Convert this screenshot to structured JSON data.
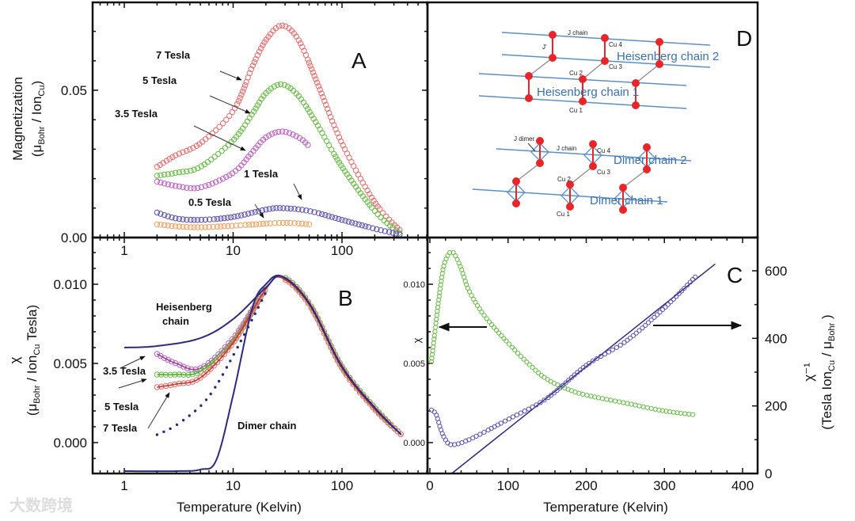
{
  "colors": {
    "t7": "#e76b6b",
    "t5": "#66bb44",
    "t35": "#bb5fc0",
    "t1": "#5a4fb0",
    "t05": "#f0a060",
    "model": "#2b2a80",
    "chainline": "#5b8fc9",
    "node": "#e8262a"
  },
  "watermark": "大数跨境",
  "chart_data": [
    {
      "panel": "A",
      "type": "scatter",
      "letter": "A",
      "xscale": "log",
      "xlim": [
        0.5,
        600
      ],
      "ylim": [
        0,
        0.08
      ],
      "xticks": [
        "1",
        "10",
        "100"
      ],
      "yticks": [
        "0.00",
        "0.05"
      ],
      "ylabel_line1": "Magnetization",
      "ylabel_line2": [
        "(μ",
        "Bohr",
        " / Ion",
        "Cu",
        ")"
      ],
      "annotations": [
        "7 Tesla",
        "5 Tesla",
        "3.5 Tesla",
        "1 Tesla",
        "0.5 Tesla"
      ],
      "series": [
        {
          "name": "7 Tesla",
          "color": "t7",
          "x": [
            2,
            3,
            5,
            10,
            15,
            20,
            28,
            40,
            60,
            100,
            200,
            350
          ],
          "y": [
            0.024,
            0.028,
            0.032,
            0.043,
            0.058,
            0.067,
            0.072,
            0.067,
            0.052,
            0.032,
            0.012,
            0.002
          ]
        },
        {
          "name": "5 Tesla",
          "color": "t5",
          "x": [
            2,
            3,
            5,
            10,
            15,
            20,
            28,
            40,
            60,
            100,
            200,
            350
          ],
          "y": [
            0.021,
            0.022,
            0.024,
            0.033,
            0.042,
            0.049,
            0.052,
            0.048,
            0.038,
            0.024,
            0.009,
            0.001
          ]
        },
        {
          "name": "3.5 Tesla",
          "color": "t35",
          "x": [
            2,
            3,
            5,
            10,
            15,
            20,
            28,
            40,
            50
          ],
          "y": [
            0.019,
            0.0175,
            0.017,
            0.022,
            0.029,
            0.034,
            0.036,
            0.034,
            0.031
          ]
        },
        {
          "name": "1 Tesla",
          "color": "t1",
          "x": [
            2,
            3,
            5,
            10,
            20,
            28,
            50,
            100,
            200,
            350
          ],
          "y": [
            0.0085,
            0.0065,
            0.006,
            0.007,
            0.0095,
            0.01,
            0.009,
            0.006,
            0.003,
            0.001
          ]
        },
        {
          "name": "0.5 Tesla",
          "color": "t05",
          "x": [
            2,
            3,
            5,
            10,
            28,
            50
          ],
          "y": [
            0.0045,
            0.0038,
            0.0035,
            0.004,
            0.005,
            0.0045
          ]
        }
      ]
    },
    {
      "panel": "B",
      "type": "line",
      "letter": "B",
      "xscale": "log",
      "xlim": [
        0.5,
        600
      ],
      "ylim": [
        -0.002,
        0.013
      ],
      "xticks": [
        "1",
        "10",
        "100"
      ],
      "yticks": [
        "0.000",
        "0.005",
        "0.010"
      ],
      "xlabel": "Temperature (Kelvin)",
      "ylabel_line1": "χ",
      "ylabel_line2": [
        "(μ",
        "Bohr",
        " / Ion",
        "Cu",
        " Tesla)"
      ],
      "annotations": {
        "heis1": "Heisenberg",
        "heis2": "chain",
        "t35": "3.5 Tesla",
        "t5": "5 Tesla",
        "t7": "7 Tesla",
        "dimer": "Dimer chain"
      },
      "series": [
        {
          "name": "Heisenberg chain",
          "style": "line",
          "color": "model",
          "x": [
            1,
            2,
            5,
            10,
            20,
            28,
            50,
            100,
            200,
            350
          ],
          "y": [
            0.006,
            0.0061,
            0.0066,
            0.0078,
            0.0098,
            0.0105,
            0.0088,
            0.0048,
            0.0022,
            0.0005
          ]
        },
        {
          "name": "Dimer chain",
          "style": "line",
          "color": "model",
          "x": [
            1,
            3,
            5,
            7,
            10,
            15,
            20,
            28,
            50,
            100,
            200,
            350
          ],
          "y": [
            -0.0018,
            -0.0018,
            -0.0017,
            -0.0011,
            0.003,
            0.0085,
            0.01,
            0.0105,
            0.0088,
            0.0048,
            0.0022,
            0.0005
          ]
        },
        {
          "name": "dotted",
          "style": "dots",
          "color": "model",
          "x": [
            2,
            3,
            5,
            7,
            10,
            15,
            20
          ],
          "y": [
            0.0005,
            0.0011,
            0.0023,
            0.0036,
            0.0055,
            0.0078,
            0.0095
          ]
        },
        {
          "name": "3.5 Tesla",
          "style": "markers",
          "color": "t35",
          "x": [
            2,
            3,
            5,
            10,
            20,
            28,
            50,
            100,
            200,
            350
          ],
          "y": [
            0.0056,
            0.005,
            0.0047,
            0.0066,
            0.0097,
            0.0105,
            0.0088,
            0.0048,
            0.0022,
            0.0005
          ]
        },
        {
          "name": "5 Tesla",
          "style": "markers",
          "color": "t5",
          "x": [
            2,
            3,
            5,
            10,
            20,
            28,
            50,
            100,
            200,
            350
          ],
          "y": [
            0.0043,
            0.0043,
            0.0045,
            0.0064,
            0.0097,
            0.0105,
            0.0088,
            0.0048,
            0.0022,
            0.0005
          ]
        },
        {
          "name": "7 Tesla",
          "style": "markers",
          "color": "t7",
          "x": [
            2,
            3,
            5,
            10,
            20,
            28,
            50,
            100,
            200,
            350
          ],
          "y": [
            0.0035,
            0.0037,
            0.0041,
            0.0063,
            0.0097,
            0.0104,
            0.0087,
            0.0047,
            0.0021,
            0.0005
          ]
        }
      ]
    },
    {
      "panel": "C",
      "type": "scatter",
      "letter": "C",
      "xscale": "linear",
      "xlim": [
        0,
        420
      ],
      "ylim_left": [
        -0.002,
        0.013
      ],
      "ylim_right": [
        0,
        705
      ],
      "xticks": [
        "0",
        "100",
        "200",
        "300",
        "400"
      ],
      "yticks_left": [
        "0.000",
        "0.005",
        "0.010"
      ],
      "yticks_right": [
        "0",
        "200",
        "400",
        "600"
      ],
      "xlabel": "Temperature (Kelvin)",
      "ylabel_left": "χ",
      "ylabel_right_line1": "χ⁻¹",
      "ylabel_right_line2": [
        "(Tesla Ion",
        "Cu",
        " / μ",
        "Bohr",
        " )"
      ],
      "series": [
        {
          "name": "χ",
          "axis": "left",
          "color": "t5",
          "x": [
            2,
            6,
            10,
            14,
            18,
            24,
            30,
            40,
            50,
            70,
            100,
            130,
            150,
            175,
            200,
            250,
            300,
            340
          ],
          "y": [
            0.0051,
            0.0068,
            0.0085,
            0.01,
            0.0112,
            0.0119,
            0.012,
            0.011,
            0.0096,
            0.008,
            0.0063,
            0.0048,
            0.004,
            0.0034,
            0.003,
            0.0025,
            0.002,
            0.00175
          ]
        },
        {
          "name": "χ⁻¹",
          "axis": "right",
          "color": "t1",
          "x": [
            2,
            8,
            14,
            20,
            28,
            50,
            100,
            150,
            200,
            250,
            300,
            340
          ],
          "y": [
            188,
            175,
            130,
            100,
            85,
            100,
            160,
            223,
            320,
            390,
            490,
            583
          ]
        },
        {
          "name": "χ⁻¹ fit",
          "axis": "right",
          "style": "line",
          "color": "model",
          "x": [
            28,
            365
          ],
          "y": [
            0,
            620
          ]
        }
      ]
    }
  ],
  "diagram_D": {
    "letter": "D",
    "labels": {
      "j_chain_top": "J chain",
      "j_prime": "J'",
      "cu4_top": "Cu 4",
      "cu3_top": "Cu 3",
      "cu2_top": "Cu 2",
      "cu1_top": "Cu 1",
      "heis2": "Heisenberg chain 2",
      "heis1": "Heisenberg chain 1",
      "j_dimer": "J dimer",
      "j_chain_bot": "J chain",
      "cu4_bot": "Cu 4",
      "cu3_bot": "Cu 3",
      "cu2_bot": "Cu 2",
      "cu1_bot": "Cu 1",
      "dimer2": "Dimer chain 2",
      "dimer1": "Dimer chain 1"
    }
  }
}
